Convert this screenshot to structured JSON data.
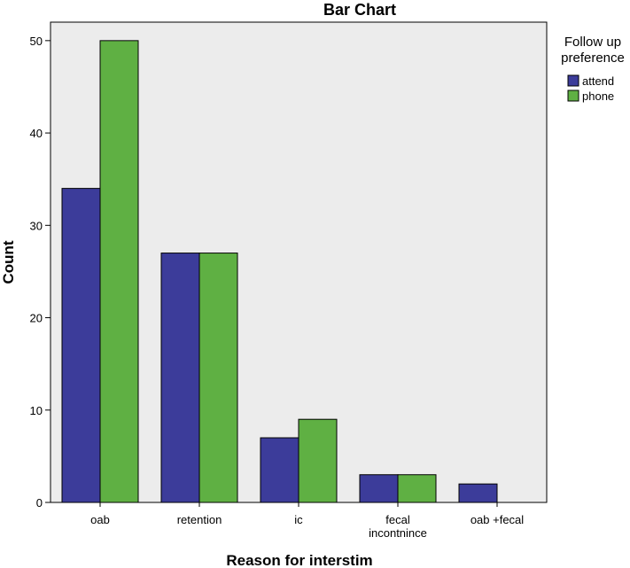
{
  "chart_data": {
    "type": "bar",
    "title": "Bar Chart",
    "xlabel": "Reason for interstim",
    "ylabel": "Count",
    "categories": [
      [
        "oab"
      ],
      [
        "retention"
      ],
      [
        "ic"
      ],
      [
        "fecal",
        "incontnince"
      ],
      [
        "oab +fecal"
      ]
    ],
    "series": [
      {
        "name": "attend",
        "color": "#3c3c9a",
        "values": [
          34,
          27,
          7,
          3,
          2
        ]
      },
      {
        "name": "phone",
        "color": "#5fb043",
        "values": [
          50,
          27,
          9,
          3,
          0
        ]
      }
    ],
    "ylim": [
      0,
      52
    ],
    "yticks": [
      0,
      10,
      20,
      30,
      40,
      50
    ],
    "legend": {
      "title_lines": [
        "Follow up",
        "preference"
      ],
      "position": "right"
    },
    "plot_background": "#ececec",
    "grid": false
  }
}
